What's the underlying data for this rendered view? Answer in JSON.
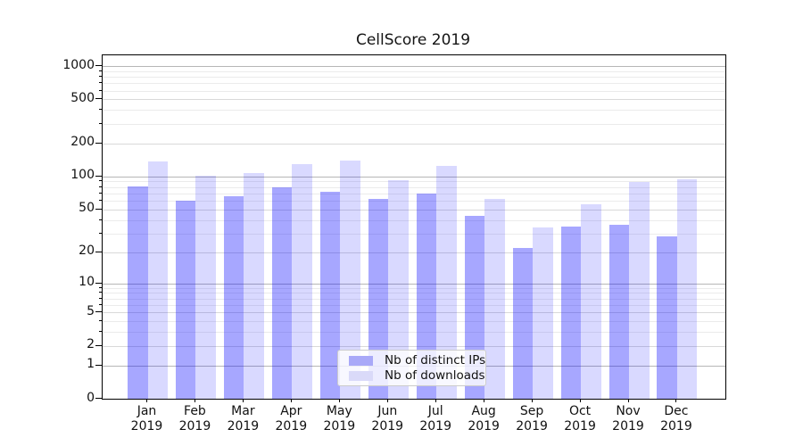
{
  "chart_data": {
    "type": "bar",
    "title": "CellScore 2019",
    "year_label": "2019",
    "months": [
      "Jan",
      "Feb",
      "Mar",
      "Apr",
      "May",
      "Jun",
      "Jul",
      "Aug",
      "Sep",
      "Oct",
      "Nov",
      "Dec"
    ],
    "categories": [
      "Jan 2019",
      "Feb 2019",
      "Mar 2019",
      "Apr 2019",
      "May 2019",
      "Jun 2019",
      "Jul 2019",
      "Aug 2019",
      "Sep 2019",
      "Oct 2019",
      "Nov 2019",
      "Dec 2019"
    ],
    "series": [
      {
        "name": "Nb of distinct IPs",
        "color": "rgba(0,0,255,0.345)",
        "legend_color": "#a9a9f8",
        "values": [
          81,
          60,
          66,
          80,
          72,
          62,
          70,
          44,
          22,
          35,
          36,
          28
        ]
      },
      {
        "name": "Nb of downloads",
        "color": "rgba(0,0,255,0.15)",
        "legend_color": "#dadaf9",
        "values": [
          137,
          102,
          108,
          129,
          139,
          93,
          125,
          62,
          34,
          56,
          89,
          94
        ]
      }
    ],
    "y_axis": {
      "scale": "log1p",
      "ticks": [
        0,
        1,
        2,
        5,
        10,
        20,
        50,
        100,
        200,
        500,
        1000
      ],
      "minor_ticks": [
        3,
        4,
        6,
        7,
        8,
        9,
        30,
        40,
        60,
        70,
        80,
        90,
        300,
        400,
        600,
        700,
        800,
        900
      ],
      "ylim": [
        0,
        1262
      ]
    },
    "legend": {
      "position": "lower-center"
    },
    "grid": {
      "decade_line_color": "#b6b6b6",
      "labeled_line_color": "#d9d9d9",
      "minor_line_color": "#ebebeb"
    }
  }
}
